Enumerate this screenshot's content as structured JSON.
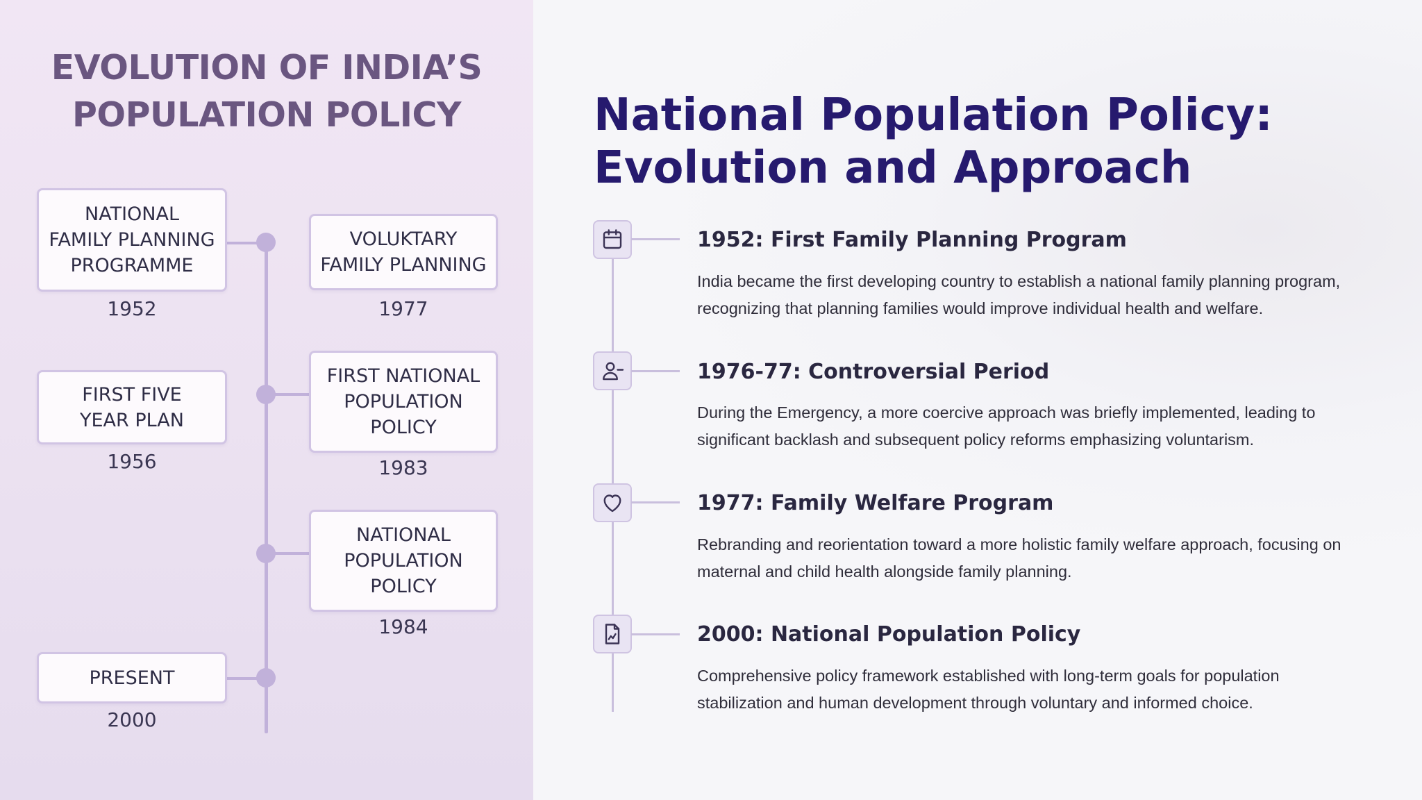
{
  "left": {
    "title": [
      "EVOLUTION OF INDIA’S",
      "POPULATION POLICY"
    ],
    "timeline": [
      {
        "lines": [
          "NATIONAL",
          "FAMILY PLANNING",
          "PROGRAMME"
        ],
        "year": "1952",
        "side": "left"
      },
      {
        "lines": [
          "VOLUKTARY",
          "FAMILY PLANNING"
        ],
        "year": "1977",
        "side": "right"
      },
      {
        "lines": [
          "FIRST FIVE",
          "YEAR PLAN"
        ],
        "year": "1956",
        "side": "left"
      },
      {
        "lines": [
          "FIRST NATIONAL",
          "POPULATION",
          "POLICY"
        ],
        "year": "1983",
        "side": "right"
      },
      {
        "lines": [
          "NATIONAL",
          "POPULATION",
          "POLICY"
        ],
        "year": "1984",
        "side": "right"
      },
      {
        "lines": [
          "PRESENT"
        ],
        "year": "2000",
        "side": "left"
      }
    ]
  },
  "right": {
    "title": [
      "National Population Policy:",
      "Evolution and Approach"
    ],
    "entries": [
      {
        "icon": "calendar-icon",
        "heading": "1952: First Family Planning Program",
        "body": [
          "India became the first developing country to establish a national family planning program,",
          "recognizing that planning families would improve individual health and welfare."
        ]
      },
      {
        "icon": "user-minus-icon",
        "heading": "1976-77: Controversial Period",
        "body": [
          "During the Emergency, a more coercive approach was briefly implemented, leading to",
          "significant backlash and subsequent policy reforms emphasizing voluntarism."
        ]
      },
      {
        "icon": "heart-icon",
        "heading": "1977: Family Welfare Program",
        "body": [
          "Rebranding and reorientation toward a more holistic family welfare approach, focusing on",
          "maternal and child health alongside family planning."
        ]
      },
      {
        "icon": "document-chart-icon",
        "heading": "2000: National Population Policy",
        "body": [
          "Comprehensive policy framework established with long-term goals for population",
          "stabilization and human development through voluntary and informed choice."
        ]
      }
    ]
  }
}
